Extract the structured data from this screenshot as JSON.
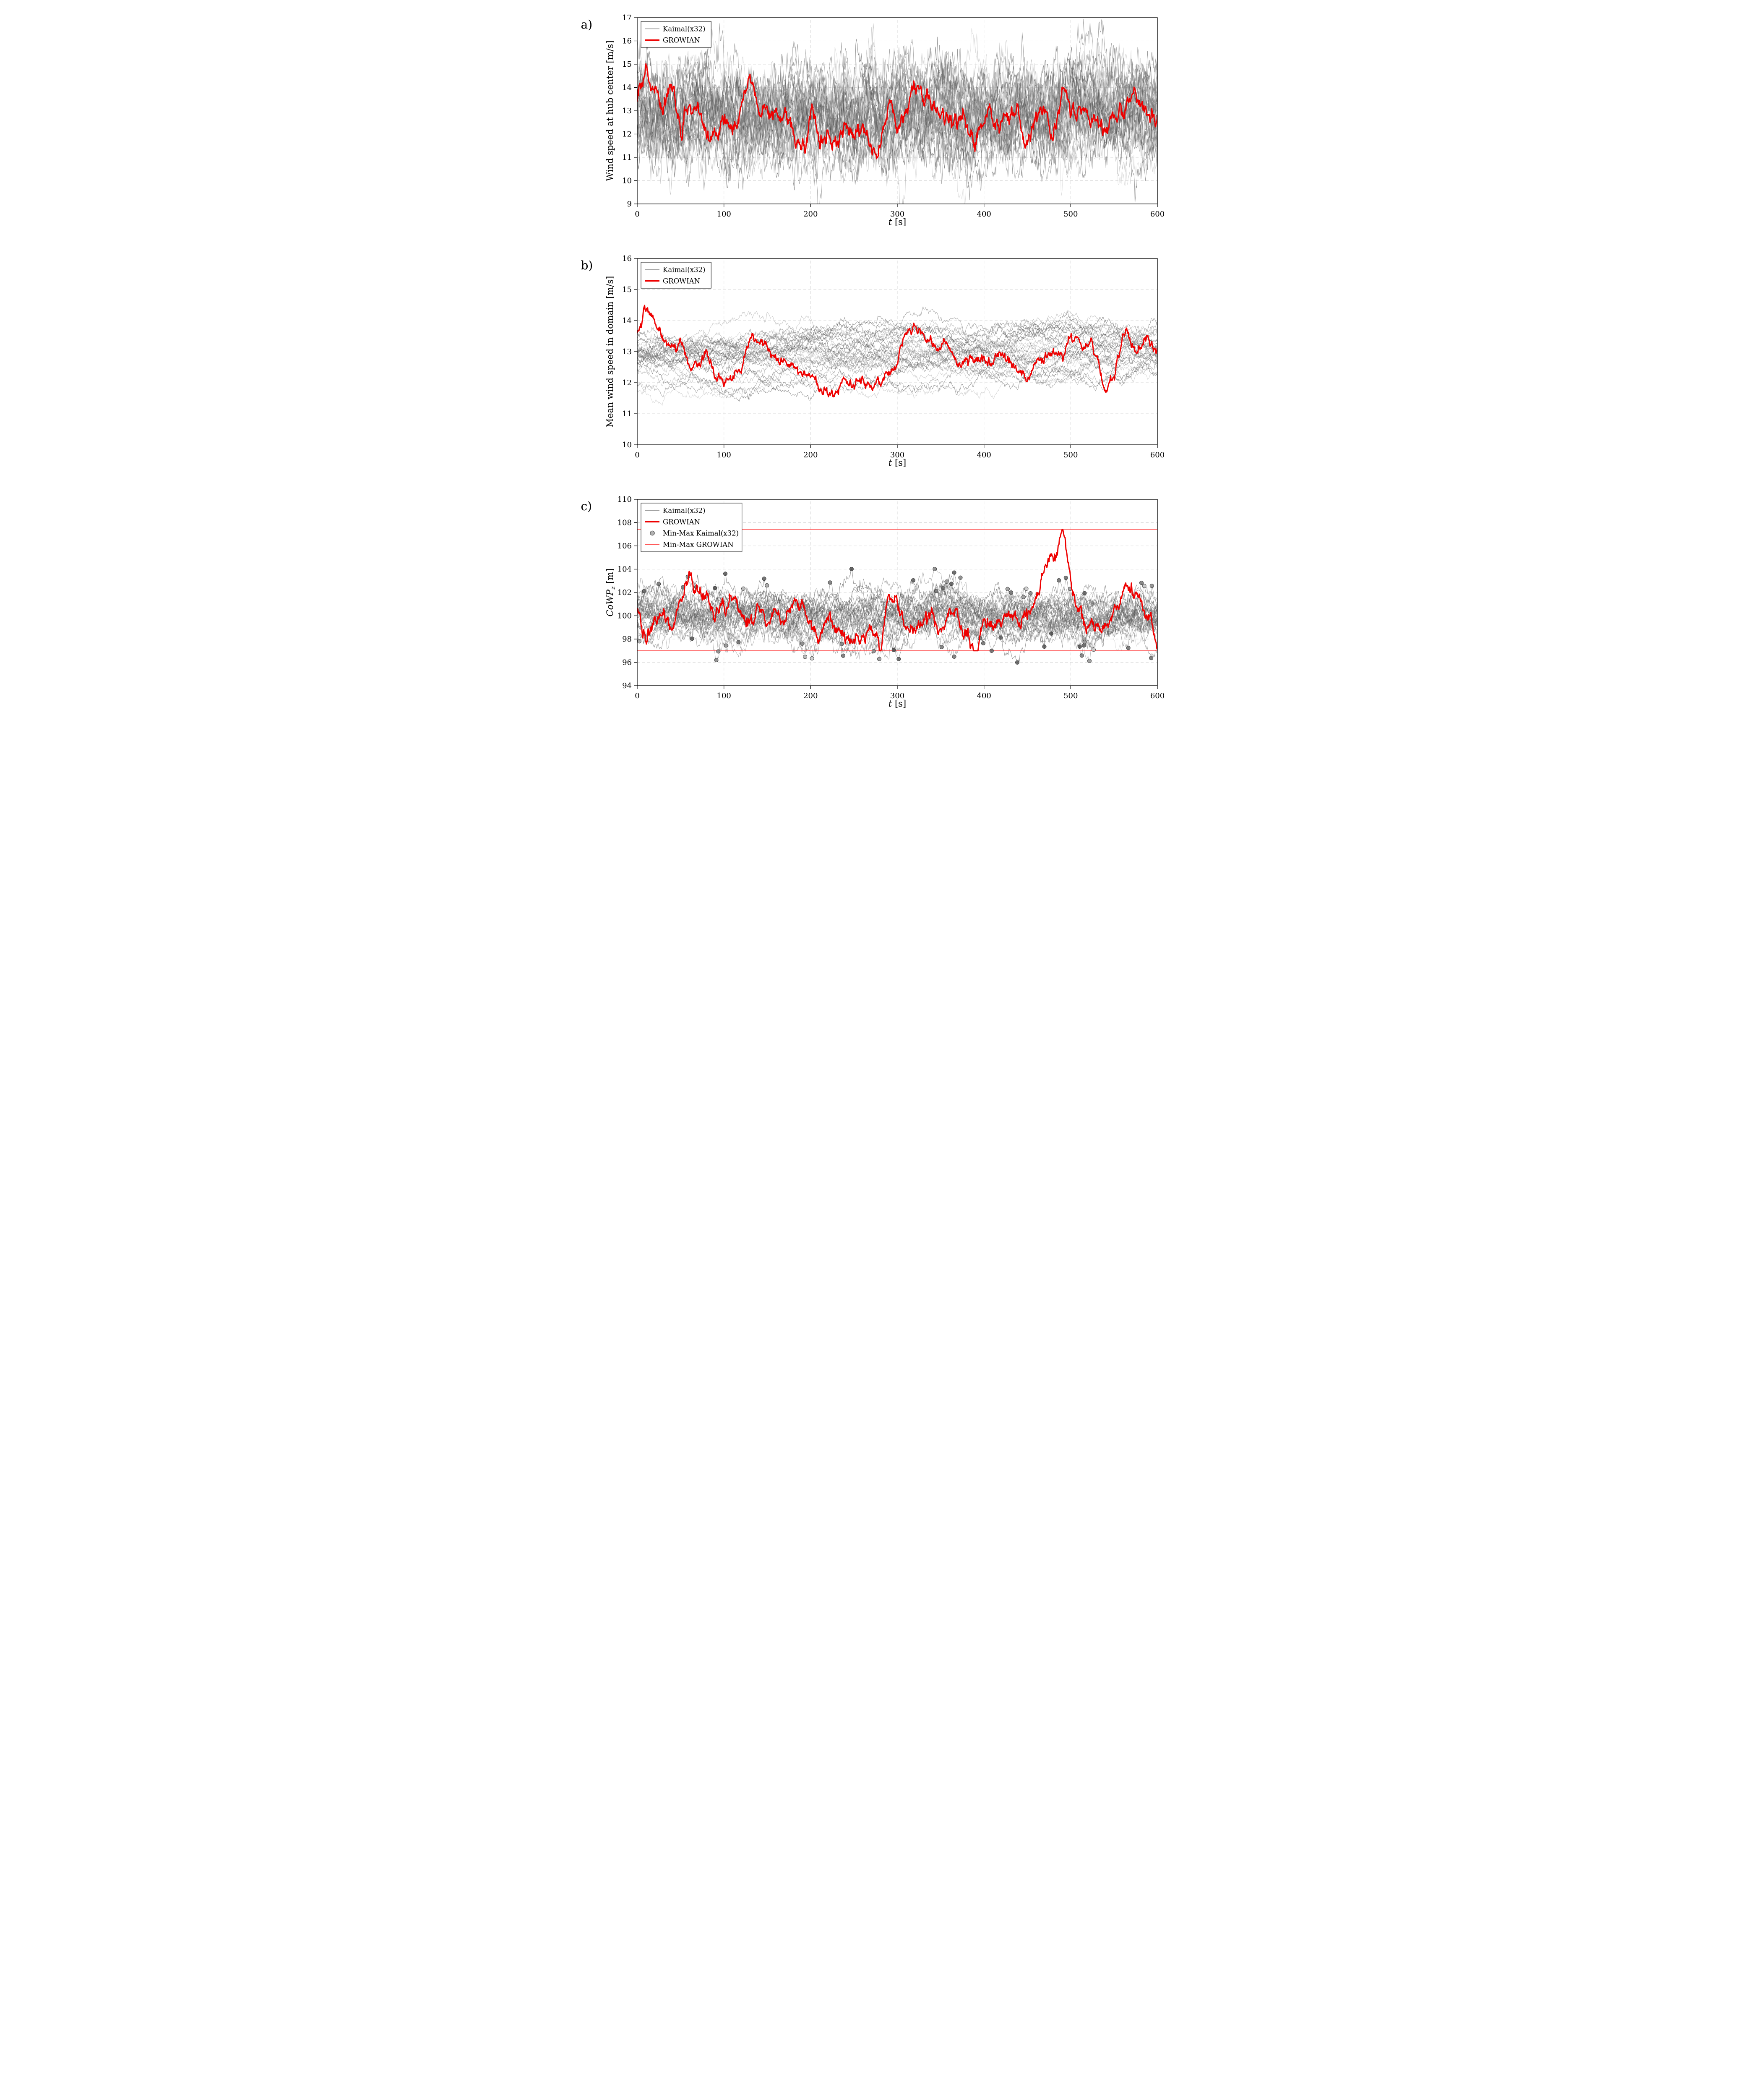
{
  "figure": {
    "panel_labels": [
      "a)",
      "b)",
      "c)"
    ]
  },
  "colors": {
    "growian": "#ee0000",
    "minmax_growian": "#ff4444",
    "grid": "#d9d9d9",
    "axis": "#000000",
    "kaimal_legend": "#999999",
    "marker_edge": "#3c3c3c"
  },
  "chart_data": [
    {
      "id": "a",
      "type": "line",
      "title": "",
      "xlabel": "t [s]",
      "ylabel": "Wind speed at hub center [m/s]",
      "xlim": [
        0,
        600
      ],
      "ylim": [
        9,
        17
      ],
      "xticks": [
        0,
        100,
        200,
        300,
        400,
        500,
        600
      ],
      "yticks": [
        9,
        10,
        11,
        12,
        13,
        14,
        15,
        16,
        17
      ],
      "grid": true,
      "seed": 11,
      "legend": {
        "position": "top-left",
        "entries": [
          {
            "label": "Kaimal(x32)",
            "type": "line",
            "color": "#999999"
          },
          {
            "label": "GROWIAN",
            "type": "line-thick",
            "color": "#ee0000"
          }
        ]
      },
      "ensemble": {
        "name": "Kaimal(x32)",
        "n_traces": 32,
        "points": 950,
        "mean": 12.8,
        "ar": 0.95,
        "sigma": 0.34,
        "mean_jitter": 0.25
      },
      "series": [
        {
          "name": "GROWIAN",
          "color": "#ee0000",
          "x_step": 10,
          "noise": 0.14,
          "y": [
            13.4,
            14.5,
            13.8,
            13.4,
            13.6,
            12.4,
            12.6,
            12.9,
            12.2,
            12.1,
            12.3,
            12.0,
            13.0,
            14.4,
            13.1,
            13.0,
            12.6,
            12.4,
            12.2,
            11.9,
            12.3,
            11.5,
            11.9,
            11.6,
            12.3,
            11.9,
            12.1,
            11.5,
            11.2,
            13.6,
            12.6,
            12.9,
            13.6,
            13.5,
            13.4,
            13.2,
            12.8,
            12.9,
            12.0,
            11.8,
            12.7,
            12.6,
            12.3,
            12.5,
            12.1,
            11.8,
            12.6,
            12.8,
            12.5,
            14.3,
            13.3,
            13.2,
            13.0,
            12.9,
            11.9,
            12.5,
            13.0,
            13.4,
            13.2,
            12.9,
            12.7
          ]
        }
      ]
    },
    {
      "id": "b",
      "type": "line",
      "title": "",
      "xlabel": "t [s]",
      "ylabel": "Mean wind speed in domain [m/s]",
      "xlim": [
        0,
        600
      ],
      "ylim": [
        10,
        16
      ],
      "xticks": [
        0,
        100,
        200,
        300,
        400,
        500,
        600
      ],
      "yticks": [
        10,
        11,
        12,
        13,
        14,
        15,
        16
      ],
      "grid": true,
      "seed": 22,
      "legend": {
        "position": "top-left",
        "entries": [
          {
            "label": "Kaimal(x32)",
            "type": "line",
            "color": "#999999"
          },
          {
            "label": "GROWIAN",
            "type": "line-thick",
            "color": "#ee0000"
          }
        ]
      },
      "ensemble": {
        "name": "Kaimal(x32)",
        "n_traces": 32,
        "points": 750,
        "mean": 12.9,
        "ar": 0.995,
        "sigma": 0.05,
        "mean_jitter": 0.25
      },
      "series": [
        {
          "name": "GROWIAN",
          "color": "#ee0000",
          "x_step": 10,
          "noise": 0.06,
          "y": [
            13.6,
            14.3,
            13.9,
            13.2,
            13.3,
            13.1,
            12.6,
            12.7,
            12.8,
            12.4,
            12.0,
            12.1,
            12.3,
            13.6,
            13.4,
            13.2,
            12.9,
            12.7,
            12.6,
            12.4,
            12.2,
            11.8,
            11.6,
            11.7,
            12.1,
            11.9,
            12.2,
            11.8,
            12.0,
            12.4,
            12.9,
            13.4,
            13.7,
            13.6,
            13.4,
            13.2,
            13.1,
            12.6,
            12.7,
            12.8,
            13.0,
            12.9,
            13.0,
            12.8,
            12.4,
            11.9,
            12.5,
            12.8,
            12.9,
            13.0,
            13.6,
            13.2,
            12.9,
            12.8,
            11.9,
            12.2,
            13.3,
            13.2,
            13.1,
            13.2,
            13.0
          ]
        }
      ]
    },
    {
      "id": "c",
      "type": "line",
      "title": "",
      "xlabel": "t [s]",
      "ylabel": "CoWP_z [m]",
      "xlim": [
        0,
        600
      ],
      "ylim": [
        94,
        110
      ],
      "xticks": [
        0,
        100,
        200,
        300,
        400,
        500,
        600
      ],
      "yticks": [
        94,
        96,
        98,
        100,
        102,
        104,
        106,
        108,
        110
      ],
      "grid": true,
      "seed": 33,
      "minmax_markers": true,
      "minmax_growian": {
        "max": 107.4,
        "min": 97.0
      },
      "legend": {
        "position": "top-left",
        "entries": [
          {
            "label": "Kaimal(x32)",
            "type": "line",
            "color": "#999999"
          },
          {
            "label": "GROWIAN",
            "type": "line-thick",
            "color": "#ee0000"
          },
          {
            "label": "Min-Max Kaimal(x32)",
            "type": "marker",
            "color": "#aaaaaa"
          },
          {
            "label": "Min-Max GROWIAN",
            "type": "line-thin",
            "color": "#ff4444"
          }
        ]
      },
      "ensemble": {
        "name": "Kaimal(x32)",
        "n_traces": 32,
        "points": 750,
        "mean": 100.0,
        "ar": 0.97,
        "sigma": 0.27,
        "mean_jitter": 0.35
      },
      "series": [
        {
          "name": "GROWIAN",
          "color": "#ee0000",
          "x_step": 10,
          "noise": 0.22,
          "clamp": [
            97.0,
            107.4
          ],
          "y": [
            100.3,
            97.6,
            99.5,
            100.4,
            99.0,
            101.4,
            102.5,
            101.0,
            102.0,
            99.6,
            101.0,
            102.3,
            100.0,
            99.5,
            101.5,
            99.3,
            100.2,
            99.0,
            100.5,
            101.0,
            99.0,
            98.2,
            100.0,
            99.0,
            97.6,
            98.6,
            98.0,
            99.5,
            97.2,
            101.8,
            100.5,
            99.0,
            98.1,
            100.0,
            99.5,
            99.0,
            100.4,
            100.0,
            99.0,
            97.2,
            99.5,
            99.0,
            99.8,
            100.0,
            99.5,
            100.4,
            101.0,
            104.0,
            105.3,
            107.3,
            103.3,
            101.1,
            99.6,
            99.0,
            98.5,
            100.4,
            100.8,
            101.5,
            101.0,
            100.0,
            97.9
          ]
        }
      ]
    }
  ]
}
